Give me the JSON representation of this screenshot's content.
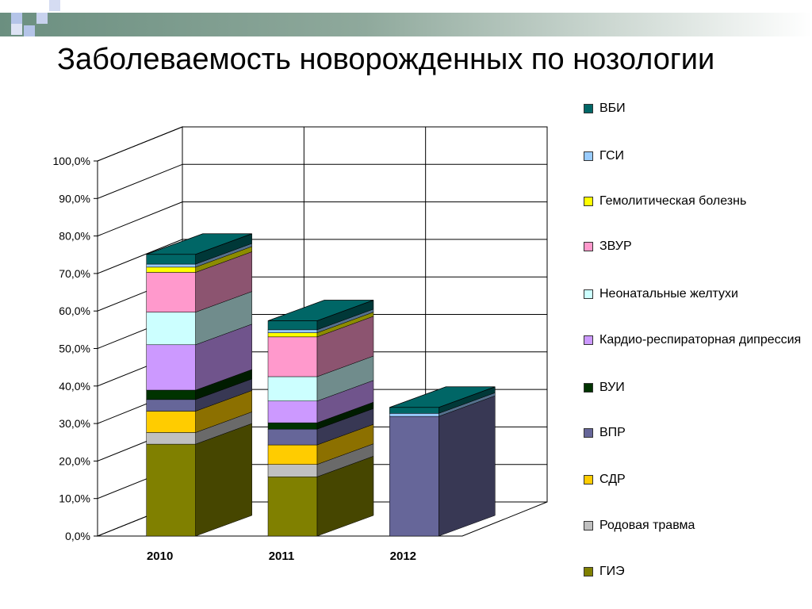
{
  "page": {
    "title": "Заболеваемость новорожденных по нозологии"
  },
  "chart_data": {
    "type": "bar",
    "stacked": true,
    "three_d": true,
    "title": "Заболеваемость новорожденных по нозологии",
    "categories": [
      "2010",
      "2011",
      "2012"
    ],
    "y_ticks": [
      "0,0%",
      "10,0%",
      "20,0%",
      "30,0%",
      "40,0%",
      "50,0%",
      "60,0%",
      "70,0%",
      "80,0%",
      "90,0%",
      "100,0%"
    ],
    "ylim": [
      0,
      100
    ],
    "grid": true,
    "legend_position": "right",
    "series": [
      {
        "name": "ГИЭ",
        "color": "#808000",
        "values": [
          24.5,
          15.8,
          0
        ]
      },
      {
        "name": "Родовая травма",
        "color": "#c0c0c0",
        "values": [
          3.1,
          3.3,
          0
        ]
      },
      {
        "name": "СДР",
        "color": "#ffcc00",
        "values": [
          5.7,
          5.2,
          0
        ]
      },
      {
        "name": "ВПР",
        "color": "#666699",
        "values": [
          3.1,
          4.2,
          31.9
        ]
      },
      {
        "name": "ВУИ",
        "color": "#003300",
        "values": [
          2.5,
          1.7,
          0
        ]
      },
      {
        "name": "Кардио-респираторная дипрессия",
        "color": "#cc99ff",
        "values": [
          12.1,
          5.8,
          0
        ]
      },
      {
        "name": "Неонатальные желтухи",
        "color": "#ccffff",
        "values": [
          8.7,
          6.5,
          0
        ]
      },
      {
        "name": "ЗВУР",
        "color": "#ff99cc",
        "values": [
          10.6,
          10.6,
          0
        ]
      },
      {
        "name": "Гемолитическая болезнь",
        "color": "#ffff00",
        "values": [
          1.4,
          1.1,
          0
        ]
      },
      {
        "name": "ГСИ",
        "color": "#99ccff",
        "values": [
          0.8,
          0.8,
          0.8
        ]
      },
      {
        "name": "ВБИ",
        "color": "#006666",
        "values": [
          2.6,
          2.4,
          1.6
        ]
      }
    ],
    "legend_order": [
      "ВБИ",
      "ГСИ",
      "Гемолитическая болезнь",
      "ЗВУР",
      "Неонатальные желтухи",
      "Кардио-респираторная дипрессия",
      "ВУИ",
      "ВПР",
      "СДР",
      "Родовая травма",
      "ГИЭ"
    ]
  }
}
